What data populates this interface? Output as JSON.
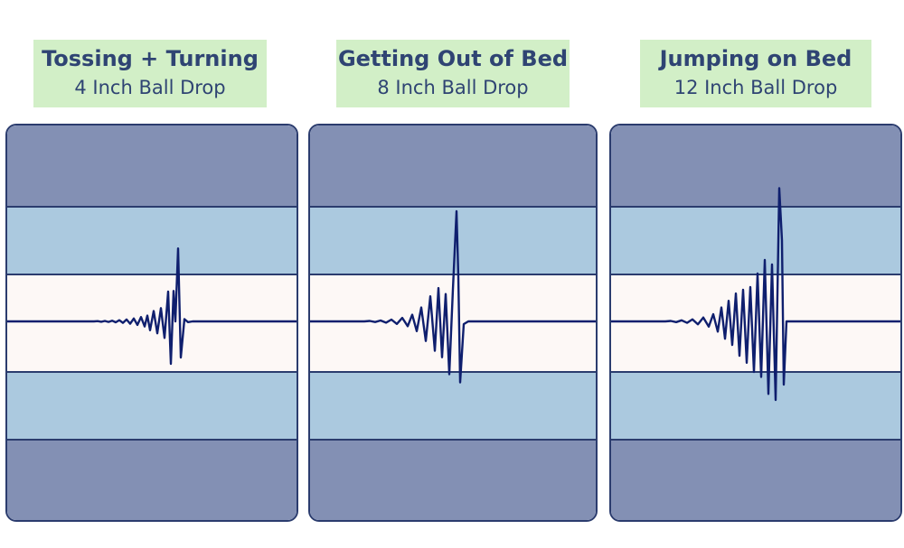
{
  "colors": {
    "label_bg": "#d2efc7",
    "label_text": "#2f4473",
    "outer_band": "#8390b4",
    "mid_band": "#abc9df",
    "center_band": "#fdf8f6",
    "band_border": "#2b3c6e",
    "trace": "#0f1f6e"
  },
  "chart_data": [
    {
      "type": "line",
      "title": "Tossing + Turning",
      "subtitle": "4 Inch Ball Drop",
      "series": [
        {
          "points": [
            [
              0,
              0
            ],
            [
              96,
              0
            ],
            [
              100,
              0.3
            ],
            [
              104,
              -0.4
            ],
            [
              108,
              0.5
            ],
            [
              112,
              -0.6
            ],
            [
              116,
              0.8
            ],
            [
              120,
              -1.0
            ],
            [
              124,
              1.3
            ],
            [
              128,
              -1.6
            ],
            [
              132,
              2.1
            ],
            [
              136,
              -2.6
            ],
            [
              140,
              3.2
            ],
            [
              144,
              -3.9
            ],
            [
              148,
              4.8
            ],
            [
              152,
              -5.6
            ],
            [
              155,
              6.4
            ],
            [
              158,
              -9.8
            ],
            [
              162,
              11.5
            ],
            [
              166,
              -13.2
            ],
            [
              170,
              14.7
            ],
            [
              174,
              -18.3
            ],
            [
              178,
              33.0
            ],
            [
              181,
              -47.0
            ],
            [
              184,
              33.7
            ],
            [
              186,
              0
            ],
            [
              189,
              80.8
            ],
            [
              192,
              -40.0
            ],
            [
              196,
              2.5
            ],
            [
              200,
              -0.8
            ],
            [
              205,
              0
            ],
            [
              320,
              0
            ]
          ]
        }
      ]
    },
    {
      "type": "line",
      "title": "Getting Out of Bed",
      "subtitle": "8 Inch Ball Drop",
      "series": [
        {
          "points": [
            [
              0,
              0
            ],
            [
              60,
              0
            ],
            [
              66,
              0.5
            ],
            [
              72,
              -0.7
            ],
            [
              78,
              1.0
            ],
            [
              84,
              -1.4
            ],
            [
              90,
              2.0
            ],
            [
              96,
              -2.8
            ],
            [
              102,
              3.9
            ],
            [
              108,
              -5.3
            ],
            [
              113,
              7.4
            ],
            [
              118,
              -10.8
            ],
            [
              123,
              15.4
            ],
            [
              128,
              -21.7
            ],
            [
              133,
              27.8
            ],
            [
              138,
              -32.5
            ],
            [
              142,
              36.9
            ],
            [
              146,
              -39.7
            ],
            [
              150,
              30.3
            ],
            [
              154,
              -58.5
            ],
            [
              158,
              35.5
            ],
            [
              162,
              122.0
            ],
            [
              164,
              50.0
            ],
            [
              166,
              -67.5
            ],
            [
              170,
              -3.0
            ],
            [
              175,
              0
            ],
            [
              316,
              0
            ]
          ]
        }
      ]
    },
    {
      "type": "line",
      "title": "Jumping on Bed",
      "subtitle": "12 Inch Ball Drop",
      "series": [
        {
          "points": [
            [
              0,
              0
            ],
            [
              60,
              0
            ],
            [
              66,
              0.5
            ],
            [
              72,
              -0.8
            ],
            [
              78,
              1.2
            ],
            [
              84,
              -1.6
            ],
            [
              90,
              2.3
            ],
            [
              96,
              -3.2
            ],
            [
              102,
              4.3
            ],
            [
              108,
              -5.8
            ],
            [
              113,
              8.0
            ],
            [
              118,
              -11.3
            ],
            [
              122,
              15.4
            ],
            [
              126,
              -19.2
            ],
            [
              130,
              22.8
            ],
            [
              134,
              -26.1
            ],
            [
              138,
              30.9
            ],
            [
              142,
              -38.1
            ],
            [
              146,
              35.0
            ],
            [
              150,
              -45.8
            ],
            [
              154,
              38.0
            ],
            [
              158,
              -56.0
            ],
            [
              162,
              53.0
            ],
            [
              166,
              -61.5
            ],
            [
              170,
              68.0
            ],
            [
              174,
              -80.3
            ],
            [
              178,
              63.0
            ],
            [
              182,
              -87.0
            ],
            [
              186,
              147.5
            ],
            [
              189,
              90.0
            ],
            [
              191,
              -70.0
            ],
            [
              194,
              0
            ],
            [
              320,
              0
            ]
          ]
        }
      ]
    }
  ]
}
